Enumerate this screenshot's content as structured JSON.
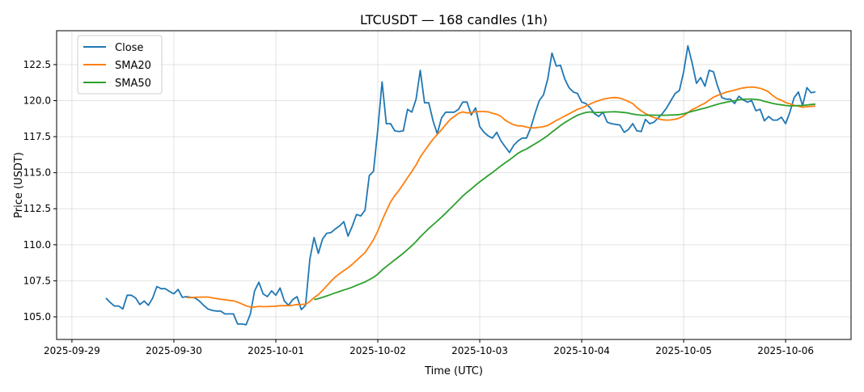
{
  "chart_data": {
    "type": "line",
    "title": "LTCUSDT — 168 candles (1h)",
    "xlabel": "Time (UTC)",
    "ylabel": "Price (USDT)",
    "start": "2025-09-29 08:00",
    "interval_hours": 1,
    "xlim_hours_from_2025-09-29": [
      -3.6,
      183.4
    ],
    "ylim": [
      103.43,
      124.85
    ],
    "grid": true,
    "legend_position": "top-left",
    "x_ticks": [
      {
        "label": "2025-09-29",
        "hours": 0
      },
      {
        "label": "2025-09-30",
        "hours": 24
      },
      {
        "label": "2025-10-01",
        "hours": 48
      },
      {
        "label": "2025-10-02",
        "hours": 72
      },
      {
        "label": "2025-10-03",
        "hours": 96
      },
      {
        "label": "2025-10-04",
        "hours": 120
      },
      {
        "label": "2025-10-05",
        "hours": 144
      },
      {
        "label": "2025-10-06",
        "hours": 168
      }
    ],
    "y_ticks": [
      {
        "label": "105.0",
        "value": 105.0
      },
      {
        "label": "107.5",
        "value": 107.5
      },
      {
        "label": "110.0",
        "value": 110.0
      },
      {
        "label": "112.5",
        "value": 112.5
      },
      {
        "label": "115.0",
        "value": 115.0
      },
      {
        "label": "117.5",
        "value": 117.5
      },
      {
        "label": "120.0",
        "value": 120.0
      },
      {
        "label": "122.5",
        "value": 122.5
      }
    ],
    "series": [
      {
        "name": "Close",
        "color": "#1f77b4",
        "values": [
          106.3,
          106.0,
          105.75,
          105.75,
          105.55,
          106.5,
          106.5,
          106.3,
          105.85,
          106.1,
          105.8,
          106.3,
          107.1,
          106.95,
          106.95,
          106.75,
          106.6,
          106.9,
          106.35,
          106.4,
          106.35,
          106.3,
          106.1,
          105.8,
          105.55,
          105.45,
          105.4,
          105.4,
          105.2,
          105.2,
          105.2,
          104.5,
          104.5,
          104.45,
          105.2,
          106.8,
          107.4,
          106.6,
          106.4,
          106.8,
          106.5,
          107.0,
          106.1,
          105.8,
          106.2,
          106.4,
          105.5,
          105.8,
          109.0,
          110.5,
          109.4,
          110.4,
          110.8,
          110.85,
          111.1,
          111.3,
          111.6,
          110.6,
          111.3,
          112.1,
          112.0,
          112.4,
          114.8,
          115.1,
          118.0,
          121.3,
          118.4,
          118.4,
          117.9,
          117.85,
          117.9,
          119.4,
          119.2,
          120.1,
          122.1,
          119.85,
          119.85,
          118.6,
          117.7,
          118.8,
          119.2,
          119.2,
          119.2,
          119.4,
          119.9,
          119.9,
          119.0,
          119.5,
          118.2,
          117.8,
          117.55,
          117.4,
          117.8,
          117.2,
          116.8,
          116.4,
          116.9,
          117.2,
          117.4,
          117.4,
          118.1,
          119.1,
          120.0,
          120.4,
          121.5,
          123.3,
          122.4,
          122.45,
          121.5,
          120.9,
          120.6,
          120.5,
          119.9,
          119.8,
          119.5,
          119.1,
          118.9,
          119.2,
          118.5,
          118.4,
          118.35,
          118.3,
          117.8,
          118.0,
          118.4,
          117.9,
          117.85,
          118.7,
          118.4,
          118.5,
          118.8,
          119.1,
          119.5,
          120.0,
          120.5,
          120.7,
          122.0,
          123.8,
          122.6,
          121.2,
          121.6,
          121.0,
          122.1,
          122.0,
          121.0,
          120.2,
          120.1,
          120.1,
          119.8,
          120.3,
          120.05,
          119.9,
          120.0,
          119.3,
          119.4,
          118.6,
          118.9,
          118.65,
          118.65,
          118.85,
          118.4,
          119.2,
          120.2,
          120.6,
          119.65,
          120.9,
          120.55,
          120.6
        ]
      },
      {
        "name": "SMA20",
        "color": "#ff7f0e",
        "window": 20
      },
      {
        "name": "SMA50",
        "color": "#2ca02c",
        "window": 50
      }
    ]
  }
}
